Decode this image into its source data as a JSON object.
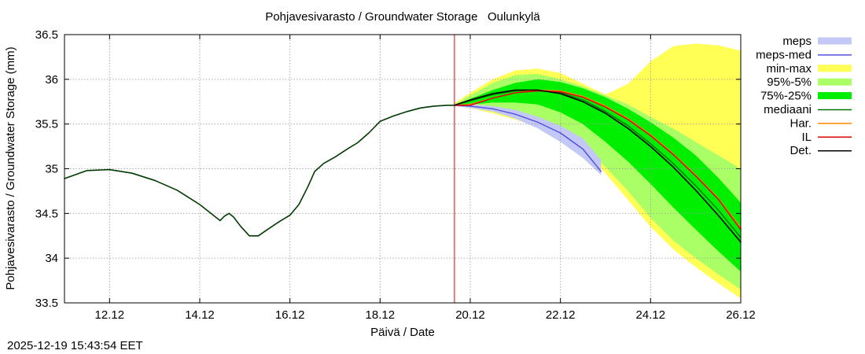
{
  "chart_data": {
    "type": "line",
    "title": "Pohjavesivarasto / Groundwater Storage   Oulunkylä",
    "xlabel": "Päivä / Date",
    "ylabel": "Pohjavesivarasto / Groundwater Storage (mm)",
    "x_unit": "days since 11.12 00:00",
    "xlim": [
      0,
      15
    ],
    "ylim": [
      33.5,
      36.5
    ],
    "yticks": [
      33.5,
      34,
      34.5,
      35,
      35.5,
      36,
      36.5
    ],
    "ytick_labels": [
      "33.5",
      "34",
      "34.5",
      "35",
      "35.5",
      "36",
      "36.5"
    ],
    "xticks": [
      1,
      3,
      5,
      7,
      9,
      11,
      13,
      15
    ],
    "xtick_labels": [
      "12.12",
      "14.12",
      "16.12",
      "18.12",
      "20.12",
      "22.12",
      "24.12",
      "26.12"
    ],
    "grid": true,
    "forecast_start_x": 8.65,
    "legend_position": "right",
    "legend": [
      {
        "label": "meps",
        "kind": "band",
        "color": "#c4c8f6"
      },
      {
        "label": "meps-med",
        "kind": "line",
        "color": "#5050d8"
      },
      {
        "label": "min-max",
        "kind": "band",
        "color": "#ffff55"
      },
      {
        "label": "95%-5%",
        "kind": "band",
        "color": "#aaff66"
      },
      {
        "label": "75%-25%",
        "kind": "band",
        "color": "#00ee00"
      },
      {
        "label": "mediaani",
        "kind": "line",
        "color": "#007700"
      },
      {
        "label": "Har.",
        "kind": "line",
        "color": "#ff8800"
      },
      {
        "label": "IL",
        "kind": "line",
        "color": "#dd0000"
      },
      {
        "label": "Det.",
        "kind": "line",
        "color": "#000000"
      }
    ],
    "history": {
      "x": [
        0,
        0.5,
        1.0,
        1.5,
        2.0,
        2.5,
        3.0,
        3.25,
        3.45,
        3.55,
        3.65,
        3.75,
        3.9,
        4.1,
        4.3,
        4.5,
        4.65,
        4.8,
        5.0,
        5.2,
        5.4,
        5.55,
        5.75,
        6.0,
        6.3,
        6.5,
        6.75,
        7.0,
        7.3,
        7.6,
        7.9,
        8.2,
        8.5,
        8.65
      ],
      "y": [
        34.89,
        34.98,
        34.99,
        34.95,
        34.87,
        34.76,
        34.6,
        34.5,
        34.42,
        34.47,
        34.5,
        34.46,
        34.36,
        34.25,
        34.25,
        34.32,
        34.37,
        34.42,
        34.48,
        34.6,
        34.8,
        34.97,
        35.06,
        35.13,
        35.23,
        35.29,
        35.4,
        35.53,
        35.59,
        35.64,
        35.68,
        35.7,
        35.71,
        35.71
      ]
    },
    "series": [
      {
        "name": "min-max",
        "kind": "band",
        "x": [
          8.65,
          9.0,
          9.5,
          10.0,
          10.5,
          11.0,
          11.5,
          12.0,
          12.5,
          13.0,
          13.5,
          14.0,
          14.5,
          15.0
        ],
        "upper": [
          35.73,
          35.85,
          36.0,
          36.1,
          36.12,
          36.07,
          35.95,
          35.83,
          35.95,
          36.2,
          36.37,
          36.4,
          36.38,
          36.32
        ],
        "lower": [
          35.7,
          35.68,
          35.62,
          35.55,
          35.47,
          35.36,
          35.2,
          34.95,
          34.65,
          34.35,
          34.1,
          33.9,
          33.72,
          33.55
        ]
      },
      {
        "name": "95%-5%",
        "kind": "band",
        "x": [
          8.65,
          9.0,
          9.5,
          10.0,
          10.5,
          11.0,
          11.5,
          12.0,
          12.5,
          13.0,
          13.5,
          14.0,
          14.5,
          15.0
        ],
        "upper": [
          35.72,
          35.82,
          35.96,
          36.05,
          36.06,
          36.0,
          35.92,
          35.82,
          35.72,
          35.58,
          35.45,
          35.3,
          35.15,
          35.0
        ],
        "lower": [
          35.7,
          35.7,
          35.66,
          35.6,
          35.52,
          35.42,
          35.25,
          35.02,
          34.75,
          34.45,
          34.2,
          34.0,
          33.82,
          33.65
        ]
      },
      {
        "name": "75%-25%",
        "kind": "band",
        "x": [
          8.65,
          9.0,
          9.5,
          10.0,
          10.5,
          11.0,
          11.5,
          12.0,
          12.5,
          13.0,
          13.5,
          14.0,
          14.5,
          15.0
        ],
        "upper": [
          35.71,
          35.78,
          35.88,
          35.96,
          36.0,
          35.97,
          35.9,
          35.8,
          35.67,
          35.52,
          35.35,
          35.15,
          34.9,
          34.62
        ],
        "lower": [
          35.7,
          35.72,
          35.74,
          35.74,
          35.72,
          35.63,
          35.5,
          35.3,
          35.08,
          34.83,
          34.57,
          34.32,
          34.08,
          33.85
        ]
      },
      {
        "name": "meps",
        "kind": "band",
        "x": [
          8.65,
          9.0,
          9.5,
          10.0,
          10.5,
          11.0,
          11.5,
          11.9
        ],
        "upper": [
          35.71,
          35.72,
          35.7,
          35.66,
          35.58,
          35.48,
          35.34,
          35.1
        ],
        "lower": [
          35.7,
          35.68,
          35.64,
          35.56,
          35.45,
          35.3,
          35.12,
          34.93
        ]
      },
      {
        "name": "meps-med",
        "kind": "line",
        "x": [
          8.65,
          9.0,
          9.5,
          10.0,
          10.5,
          11.0,
          11.5,
          11.9
        ],
        "y": [
          35.71,
          35.7,
          35.67,
          35.61,
          35.52,
          35.4,
          35.22,
          34.97
        ]
      },
      {
        "name": "mediaani",
        "kind": "line",
        "x": [
          8.65,
          9.0,
          9.5,
          10.0,
          10.5,
          11.0,
          11.5,
          12.0,
          12.5,
          13.0,
          13.5,
          14.0,
          14.5,
          15.0
        ],
        "y": [
          35.71,
          35.76,
          35.83,
          35.87,
          35.88,
          35.85,
          35.77,
          35.64,
          35.48,
          35.28,
          35.06,
          34.81,
          34.54,
          34.23
        ]
      },
      {
        "name": "Det.",
        "kind": "line",
        "x": [
          8.65,
          9.0,
          9.5,
          10.0,
          10.5,
          11.0,
          11.5,
          12.0,
          12.5,
          13.0,
          13.5,
          14.0,
          14.5,
          15.0
        ],
        "y": [
          35.71,
          35.77,
          35.84,
          35.88,
          35.88,
          35.84,
          35.75,
          35.62,
          35.45,
          35.25,
          35.02,
          34.76,
          34.48,
          34.18
        ]
      },
      {
        "name": "Har.",
        "kind": "line",
        "x": [
          8.65,
          9.0,
          9.5,
          10.0,
          10.5,
          11.0,
          11.5,
          12.0,
          12.5,
          13.0,
          13.5,
          14.0,
          14.5,
          15.0
        ],
        "y": [
          35.71,
          35.72,
          35.79,
          35.85,
          35.88,
          35.87,
          35.81,
          35.7,
          35.56,
          35.38,
          35.17,
          34.93,
          34.67,
          34.34
        ]
      },
      {
        "name": "IL",
        "kind": "line",
        "x": [
          8.65,
          9.0,
          9.5,
          10.0,
          10.5,
          11.0,
          11.5,
          12.0,
          12.5,
          13.0,
          13.5,
          14.0,
          14.5,
          15.0
        ],
        "y": [
          35.71,
          35.71,
          35.79,
          35.85,
          35.87,
          35.86,
          35.8,
          35.69,
          35.55,
          35.37,
          35.16,
          34.92,
          34.66,
          34.32
        ]
      }
    ]
  },
  "footer": {
    "timestamp": "2025-12-19 15:43:54 EET"
  }
}
